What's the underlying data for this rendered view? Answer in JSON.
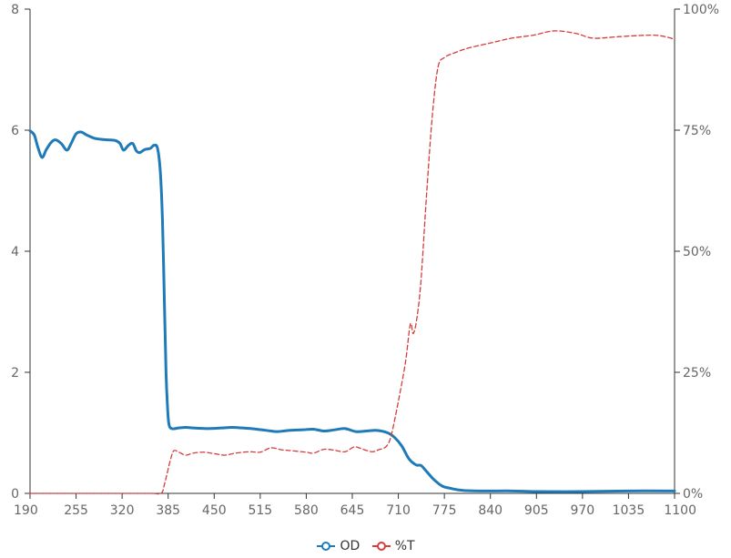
{
  "chart_data": {
    "type": "line",
    "title": "",
    "xlabel": "",
    "ylabel": "",
    "xlim": [
      190,
      1100
    ],
    "ylim": [
      0,
      8
    ],
    "y2lim": [
      0,
      100
    ],
    "x_ticks": [
      "190",
      "255",
      "320",
      "385",
      "450",
      "515",
      "580",
      "645",
      "710",
      "775",
      "840",
      "905",
      "970",
      "1035",
      "1100"
    ],
    "y_ticks": [
      "0",
      "2",
      "4",
      "6",
      "8"
    ],
    "y2_ticks": [
      "0%",
      "25%",
      "50%",
      "75%",
      "100%"
    ],
    "legend_position": "bottom-center",
    "grid": false,
    "series": [
      {
        "name": "OD",
        "axis": "left",
        "color": "#1f7ab8",
        "style": "solid",
        "points": [
          [
            190,
            5.99
          ],
          [
            196,
            5.92
          ],
          [
            201,
            5.72
          ],
          [
            207,
            5.55
          ],
          [
            213,
            5.68
          ],
          [
            220,
            5.8
          ],
          [
            226,
            5.84
          ],
          [
            234,
            5.78
          ],
          [
            242,
            5.67
          ],
          [
            248,
            5.78
          ],
          [
            255,
            5.94
          ],
          [
            262,
            5.97
          ],
          [
            270,
            5.92
          ],
          [
            280,
            5.87
          ],
          [
            290,
            5.85
          ],
          [
            300,
            5.84
          ],
          [
            310,
            5.83
          ],
          [
            317,
            5.78
          ],
          [
            322,
            5.67
          ],
          [
            329,
            5.75
          ],
          [
            335,
            5.78
          ],
          [
            340,
            5.66
          ],
          [
            345,
            5.63
          ],
          [
            352,
            5.68
          ],
          [
            360,
            5.7
          ],
          [
            365,
            5.75
          ],
          [
            370,
            5.7
          ],
          [
            374,
            5.3
          ],
          [
            377,
            4.5
          ],
          [
            380,
            3.0
          ],
          [
            382,
            2.0
          ],
          [
            384,
            1.45
          ],
          [
            386,
            1.15
          ],
          [
            390,
            1.07
          ],
          [
            400,
            1.08
          ],
          [
            410,
            1.09
          ],
          [
            420,
            1.08
          ],
          [
            440,
            1.07
          ],
          [
            460,
            1.08
          ],
          [
            475,
            1.09
          ],
          [
            490,
            1.08
          ],
          [
            510,
            1.06
          ],
          [
            530,
            1.03
          ],
          [
            540,
            1.02
          ],
          [
            555,
            1.04
          ],
          [
            575,
            1.05
          ],
          [
            590,
            1.06
          ],
          [
            605,
            1.03
          ],
          [
            620,
            1.05
          ],
          [
            635,
            1.07
          ],
          [
            650,
            1.02
          ],
          [
            665,
            1.03
          ],
          [
            680,
            1.04
          ],
          [
            695,
            1.0
          ],
          [
            705,
            0.92
          ],
          [
            715,
            0.78
          ],
          [
            725,
            0.57
          ],
          [
            735,
            0.47
          ],
          [
            742,
            0.46
          ],
          [
            750,
            0.36
          ],
          [
            760,
            0.23
          ],
          [
            772,
            0.12
          ],
          [
            785,
            0.08
          ],
          [
            800,
            0.05
          ],
          [
            830,
            0.04
          ],
          [
            870,
            0.04
          ],
          [
            905,
            0.03
          ],
          [
            970,
            0.03
          ],
          [
            1035,
            0.04
          ],
          [
            1100,
            0.04
          ]
        ]
      },
      {
        "name": "%T",
        "axis": "right",
        "color": "#d63c3c",
        "style": "dashed",
        "points": [
          [
            190,
            0.0
          ],
          [
            300,
            0.0
          ],
          [
            360,
            0.0
          ],
          [
            375,
            0.0
          ],
          [
            380,
            2.0
          ],
          [
            388,
            6.8
          ],
          [
            393,
            8.8
          ],
          [
            400,
            8.5
          ],
          [
            410,
            7.9
          ],
          [
            420,
            8.3
          ],
          [
            435,
            8.5
          ],
          [
            450,
            8.2
          ],
          [
            465,
            7.9
          ],
          [
            480,
            8.3
          ],
          [
            500,
            8.6
          ],
          [
            515,
            8.5
          ],
          [
            530,
            9.4
          ],
          [
            545,
            9.0
          ],
          [
            560,
            8.8
          ],
          [
            580,
            8.5
          ],
          [
            590,
            8.3
          ],
          [
            605,
            9.1
          ],
          [
            620,
            8.9
          ],
          [
            635,
            8.6
          ],
          [
            648,
            9.6
          ],
          [
            660,
            9.1
          ],
          [
            673,
            8.6
          ],
          [
            682,
            9.0
          ],
          [
            693,
            9.7
          ],
          [
            700,
            12.0
          ],
          [
            710,
            19.0
          ],
          [
            720,
            27.0
          ],
          [
            727,
            35.0
          ],
          [
            731,
            33.0
          ],
          [
            736,
            36.0
          ],
          [
            742,
            44.0
          ],
          [
            750,
            62.0
          ],
          [
            758,
            78.0
          ],
          [
            766,
            88.0
          ],
          [
            775,
            90.0
          ],
          [
            790,
            91.0
          ],
          [
            810,
            92.0
          ],
          [
            840,
            93.0
          ],
          [
            870,
            94.0
          ],
          [
            900,
            94.6
          ],
          [
            930,
            95.5
          ],
          [
            960,
            95.0
          ],
          [
            985,
            94.0
          ],
          [
            1020,
            94.3
          ],
          [
            1060,
            94.6
          ],
          [
            1080,
            94.5
          ],
          [
            1100,
            93.8
          ]
        ]
      }
    ]
  }
}
